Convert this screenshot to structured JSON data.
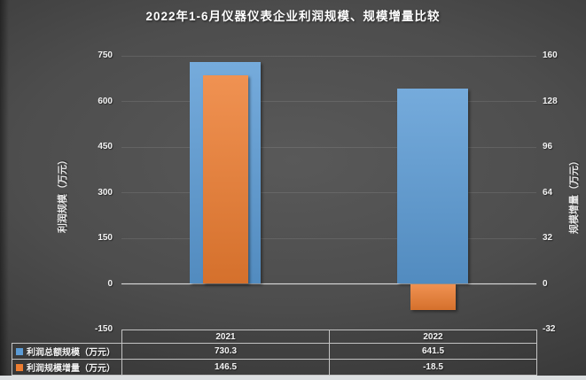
{
  "title": "2022年1-6月仪器仪表企业利润规模、规模增量比较",
  "chart_data": {
    "type": "bar",
    "categories": [
      "2021",
      "2022"
    ],
    "series": [
      {
        "name": "利润总额规模（万元）",
        "axis": "left",
        "color": "#5B9BD5",
        "values": [
          730.3,
          641.5
        ]
      },
      {
        "name": "利润规模增量（万元）",
        "axis": "right",
        "color": "#ED7D31",
        "values": [
          146.5,
          -18.5
        ]
      }
    ],
    "left_axis": {
      "title": "利润规模（万元）",
      "min": -150,
      "max": 750,
      "ticks": [
        750,
        600,
        450,
        300,
        150,
        0,
        -150
      ]
    },
    "right_axis": {
      "title": "规模增量（万元）",
      "min": -32,
      "max": 160,
      "ticks": [
        160,
        128,
        96,
        64,
        32,
        0,
        -32
      ]
    },
    "grid": true,
    "legend_position": "table-bottom",
    "style": "overlapped-bars-dark-background"
  },
  "table": {
    "col_headers": [
      "2021",
      "2022"
    ],
    "rows": [
      {
        "label": "利润总额规模（万元）",
        "swatch_color": "#5B9BD5",
        "values": [
          "730.3",
          "641.5"
        ]
      },
      {
        "label": "利润规模增量（万元）",
        "swatch_color": "#ED7D31",
        "values": [
          "146.5",
          "-18.5"
        ]
      }
    ]
  },
  "colors": {
    "series_blue": "#5B9BD5",
    "series_orange": "#ED7D31",
    "zero_line": "#d9d9d9",
    "table_border": "#c3c3c3",
    "text": "#f2f2f2"
  }
}
